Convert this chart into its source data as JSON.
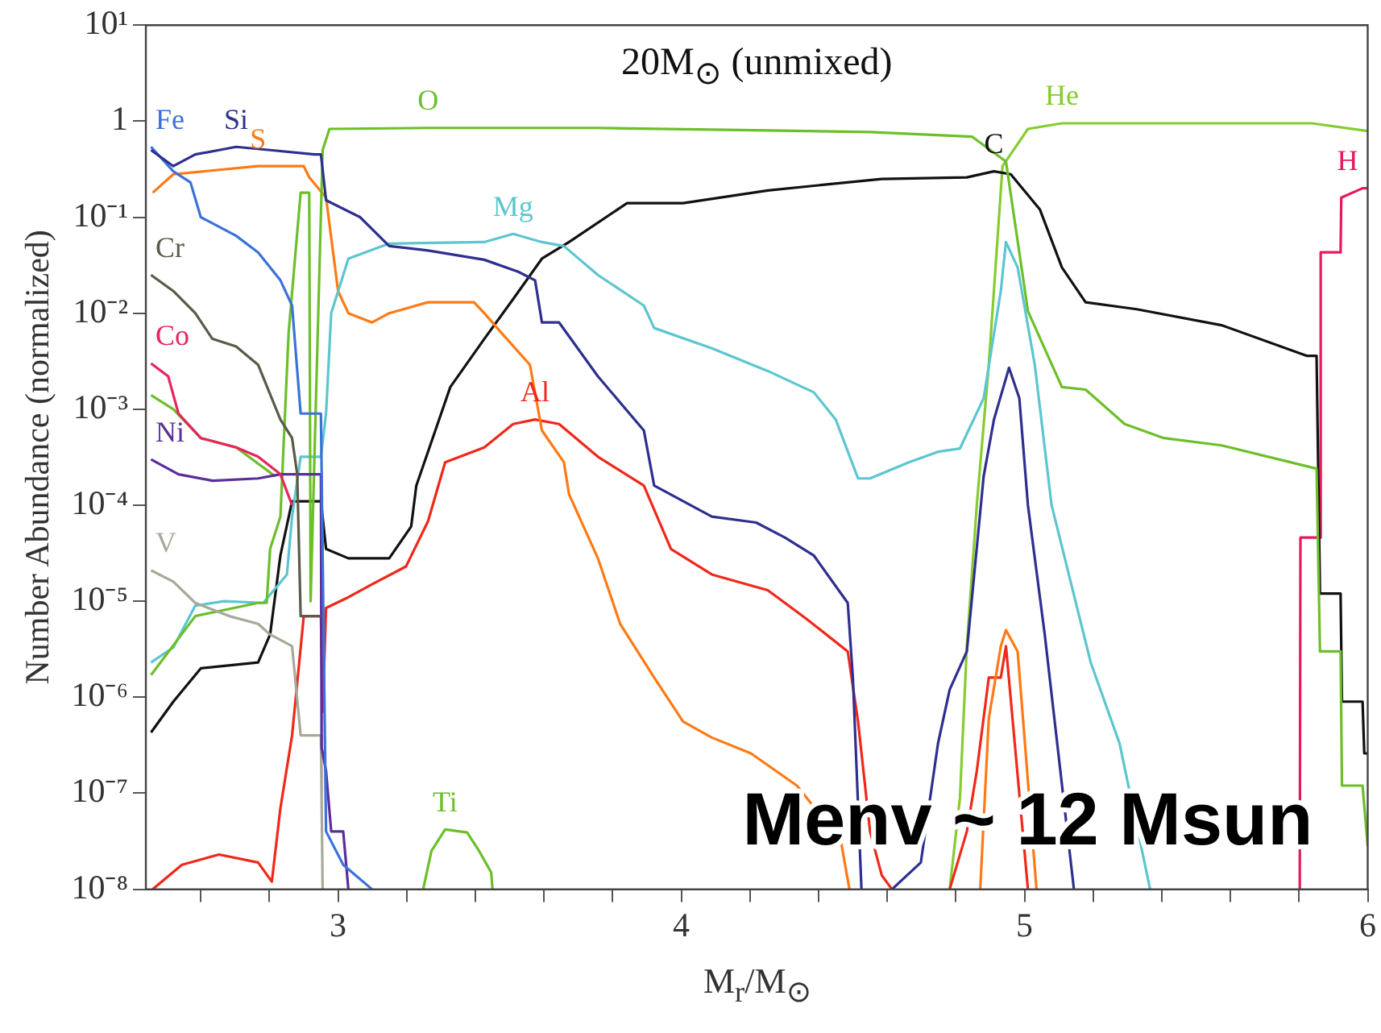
{
  "chart_data": {
    "type": "line",
    "title": "20M$_{⊙}$ (unmixed)",
    "xlabel": "M$_{r}$/M$_{⊙}$",
    "ylabel": "Number Abundance (normalized)",
    "log": "y",
    "grid": false,
    "legend": false,
    "xlim": [
      2.44,
      6
    ],
    "xticks": [
      {
        "value": 2.6,
        "label": null
      },
      {
        "value": 2.8,
        "label": null
      },
      3,
      {
        "value": 3.2,
        "label": null
      },
      {
        "value": 3.4,
        "label": null
      },
      {
        "value": 3.6,
        "label": null
      },
      {
        "value": 3.8,
        "label": null
      },
      4,
      {
        "value": 4.2,
        "label": null
      },
      {
        "value": 4.4,
        "label": null
      },
      {
        "value": 4.6,
        "label": null
      },
      {
        "value": 4.8,
        "label": null
      },
      5,
      {
        "value": 5.2,
        "label": null
      },
      {
        "value": 5.4,
        "label": null
      },
      {
        "value": 5.6,
        "label": null
      },
      {
        "value": 5.8,
        "label": null
      },
      6
    ],
    "ylim": [
      1e-08,
      10
    ],
    "yticks": [
      {
        "value": 1e-08,
        "label": "10⁻⁸"
      },
      {
        "value": 1e-07,
        "label": "10⁻⁷"
      },
      {
        "value": 1e-06,
        "label": "10⁻⁶"
      },
      {
        "value": 1e-05,
        "label": "10⁻⁵"
      },
      {
        "value": 0.0001,
        "label": "10⁻⁴"
      },
      {
        "value": 0.001,
        "label": "10⁻³"
      },
      {
        "value": 0.01,
        "label": "10⁻²"
      },
      {
        "value": 0.1,
        "label": "10⁻¹"
      },
      1,
      {
        "value": 10,
        "label": "10¹"
      }
    ],
    "series": [
      {
        "name": "Si",
        "color": "#2e2f8f",
        "x": [
          2.455,
          2.52,
          2.584,
          2.703,
          2.802,
          2.931,
          2.95,
          2.965,
          3.064,
          3.149,
          3.262,
          3.426,
          3.525,
          3.574,
          3.594,
          3.644,
          3.757,
          3.891,
          3.921,
          4.089,
          4.218,
          4.302,
          4.386,
          4.485,
          4.5,
          4.525,
          4.56,
          4.614,
          4.698,
          4.748,
          4.782,
          4.832,
          4.881,
          4.911,
          4.955,
          4.985,
          5.01,
          5.059,
          5.144
        ],
        "values": [
          0.5,
          0.34,
          0.45,
          0.54,
          0.5,
          0.45,
          0.45,
          0.15,
          0.1,
          0.05,
          0.045,
          0.036,
          0.027,
          0.022,
          0.008,
          0.008,
          0.0022,
          0.0006,
          0.00016,
          7.6e-05,
          6.6e-05,
          4.6e-05,
          3e-05,
          9.6e-06,
          1.6e-06,
          1e-08,
          null,
          1e-08,
          1.9e-08,
          3.3e-07,
          1.2e-06,
          3e-06,
          0.0002,
          0.00078,
          0.0027,
          0.0013,
          0.0001,
          4.5e-06,
          1e-08
        ]
      },
      {
        "name": "Fe",
        "color": "#3b72d9",
        "x": [
          2.455,
          2.52,
          2.57,
          2.6,
          2.703,
          2.767,
          2.832,
          2.866,
          2.891,
          2.95,
          2.965,
          3.015,
          3.099
        ],
        "values": [
          0.54,
          0.3,
          0.23,
          0.1,
          0.064,
          0.043,
          0.022,
          0.012,
          0.0009,
          0.0009,
          4e-08,
          1.8e-08,
          1e-08
        ]
      },
      {
        "name": "Cr",
        "color": "#5a5a48",
        "x": [
          2.455,
          2.52,
          2.584,
          2.634,
          2.703,
          2.767,
          2.832,
          2.866,
          2.881,
          2.891,
          2.95
        ],
        "values": [
          0.025,
          0.017,
          0.01,
          0.0054,
          0.0045,
          0.0029,
          0.00078,
          0.0005,
          0.00021,
          7e-06,
          7e-06
        ]
      },
      {
        "name": "Co",
        "color": "#e8245c",
        "x": [
          2.455,
          2.505,
          2.535,
          2.6,
          2.703,
          2.767,
          2.832,
          2.866
        ],
        "values": [
          0.003,
          0.0022,
          0.0009,
          0.0005,
          0.0004,
          0.00032,
          0.00021,
          0.0001
        ]
      },
      {
        "name": "Ni",
        "color": "#5b2d9b",
        "x": [
          2.455,
          2.535,
          2.634,
          2.767,
          2.832,
          2.95,
          2.952,
          2.965,
          2.98,
          3.015,
          3.03
        ],
        "values": [
          0.0003,
          0.00021,
          0.00018,
          0.00019,
          0.00021,
          0.00021,
          3e-07,
          1.7e-07,
          4e-08,
          4e-08,
          1e-08
        ]
      },
      {
        "name": "V",
        "color": "#a9a999",
        "x": [
          2.455,
          2.52,
          2.584,
          2.683,
          2.767,
          2.802,
          2.866,
          2.891,
          2.95,
          2.952,
          2.955
        ],
        "values": [
          2.1e-05,
          1.6e-05,
          9.6e-06,
          7e-06,
          5.8e-06,
          4.5e-06,
          3.4e-06,
          4e-07,
          4e-07,
          8.6e-08,
          1e-08
        ]
      },
      {
        "name": "O",
        "color": "#6cbf2a",
        "x": [
          2.455,
          2.584,
          2.767,
          2.792,
          2.802,
          2.832,
          2.856,
          2.891,
          2.916,
          2.92,
          2.955,
          2.975,
          3.262,
          3.757,
          4.252,
          4.55,
          4.847,
          4.946,
          5.01,
          5.109,
          5.178,
          5.292,
          5.406,
          5.574,
          5.851,
          5.861,
          5.921,
          5.925,
          5.985,
          6.0
        ],
        "values": [
          1.7e-06,
          7e-06,
          9.6e-06,
          9.6e-06,
          3.5e-05,
          7.6e-05,
          0.0063,
          0.18,
          0.18,
          1e-05,
          0.5,
          0.83,
          0.85,
          0.85,
          0.8,
          0.77,
          0.69,
          0.38,
          0.0105,
          0.0017,
          0.0016,
          0.0007,
          0.0005,
          0.00042,
          0.00024,
          3e-06,
          3e-06,
          1.2e-07,
          1.2e-07,
          2.8e-08
        ]
      },
      {
        "name": "Mg",
        "color": "#5cc6d0",
        "x": [
          2.455,
          2.52,
          2.584,
          2.668,
          2.782,
          2.851,
          2.866,
          2.891,
          2.95,
          2.965,
          2.98,
          3.03,
          3.149,
          3.426,
          3.51,
          3.594,
          3.658,
          3.757,
          3.891,
          3.921,
          4.089,
          4.252,
          4.386,
          4.45,
          4.515,
          4.55,
          4.663,
          4.748,
          4.812,
          4.881,
          4.931,
          4.946,
          4.98,
          5.03,
          5.079,
          5.193,
          5.277,
          5.366
        ],
        "values": [
          2.3e-06,
          3.3e-06,
          9e-06,
          1e-05,
          9.6e-06,
          1.9e-05,
          7.6e-05,
          0.00032,
          0.00032,
          0.0009,
          0.01,
          0.037,
          0.053,
          0.055,
          0.067,
          0.055,
          0.05,
          0.025,
          0.012,
          0.007,
          0.0043,
          0.0025,
          0.0015,
          0.00078,
          0.00019,
          0.00019,
          0.00028,
          0.00036,
          0.00039,
          0.0013,
          0.017,
          0.055,
          0.03,
          0.0029,
          0.0001,
          2.3e-06,
          3.3e-07,
          1e-08
        ]
      },
      {
        "name": "S",
        "color": "#ff7a14",
        "x": [
          2.46,
          2.52,
          2.767,
          2.9,
          2.916,
          2.965,
          3.0,
          3.03,
          3.099,
          3.149,
          3.262,
          3.396,
          3.426,
          3.475,
          3.559,
          3.594,
          3.658,
          3.673,
          3.757,
          3.822,
          3.921,
          4.005,
          4.089,
          4.203,
          4.337,
          4.465,
          4.49,
          4.55,
          4.871,
          4.896,
          4.931,
          4.946,
          4.98,
          5.035
        ],
        "values": [
          0.18,
          0.28,
          0.34,
          0.34,
          0.26,
          0.16,
          0.017,
          0.01,
          0.008,
          0.01,
          0.013,
          0.013,
          0.01,
          0.0063,
          0.0029,
          0.0006,
          0.00028,
          0.00013,
          2.8e-05,
          5.8e-06,
          1.6e-06,
          5.6e-07,
          3.8e-07,
          2.6e-07,
          1.2e-07,
          3.2e-08,
          1e-08,
          null,
          1e-08,
          6e-07,
          3.4e-06,
          5e-06,
          3e-06,
          1e-08
        ]
      },
      {
        "name": "C",
        "color": "#111111",
        "x": [
          2.455,
          2.52,
          2.6,
          2.767,
          2.802,
          2.832,
          2.866,
          2.916,
          2.95,
          2.965,
          3.03,
          3.149,
          3.213,
          3.228,
          3.327,
          3.426,
          3.51,
          3.594,
          3.673,
          3.842,
          4.005,
          4.252,
          4.584,
          4.832,
          4.911,
          4.96,
          5.045,
          5.109,
          5.178,
          5.327,
          5.574,
          5.822,
          5.851,
          5.861,
          5.921,
          5.925,
          5.985,
          5.99,
          6.0
        ],
        "values": [
          4.3e-07,
          9e-07,
          2e-06,
          2.3e-06,
          4.5e-06,
          3e-05,
          0.00011,
          0.00011,
          0.00011,
          3.5e-05,
          2.8e-05,
          2.8e-05,
          6e-05,
          0.00016,
          0.0017,
          0.0054,
          0.014,
          0.037,
          0.055,
          0.14,
          0.14,
          0.19,
          0.25,
          0.26,
          0.3,
          0.28,
          0.12,
          0.03,
          0.013,
          0.011,
          0.0075,
          0.0036,
          0.0036,
          1.2e-05,
          1.2e-05,
          9e-07,
          9e-07,
          2.6e-07,
          2.6e-07
        ]
      },
      {
        "name": "Al",
        "color": "#f0281a",
        "x": [
          2.46,
          2.545,
          2.653,
          2.767,
          2.807,
          2.832,
          2.866,
          2.9,
          2.95,
          2.955,
          2.965,
          3.03,
          3.099,
          3.198,
          3.262,
          3.312,
          3.426,
          3.51,
          3.574,
          3.644,
          3.757,
          3.891,
          3.97,
          4.089,
          4.252,
          4.366,
          4.485,
          4.515,
          4.55,
          4.584,
          4.614,
          4.65,
          4.782,
          4.832,
          4.861,
          4.896,
          4.931,
          4.946,
          5.01
        ],
        "values": [
          1e-08,
          1.8e-08,
          2.3e-08,
          1.9e-08,
          1.2e-08,
          7e-08,
          4e-07,
          7e-06,
          7e-06,
          7e-07,
          8.5e-06,
          1.1e-05,
          1.5e-05,
          2.3e-05,
          6.8e-05,
          0.00028,
          0.0004,
          0.0007,
          0.00078,
          0.0007,
          0.00032,
          0.00016,
          3.5e-05,
          1.9e-05,
          1.3e-05,
          6.5e-06,
          3e-06,
          5.6e-07,
          4e-08,
          1.4e-08,
          1e-08,
          null,
          1e-08,
          4e-08,
          1.7e-07,
          1.6e-06,
          1.6e-06,
          3.4e-06,
          1e-08
        ]
      },
      {
        "color": "#6cbf2a",
        "x": [
          2.455,
          2.52,
          2.6,
          2.703,
          2.817
        ],
        "values": [
          0.0014,
          0.001,
          0.0005,
          0.0004,
          0.0002
        ]
      },
      {
        "name": "Ti",
        "color": "#6cbf2a",
        "x": [
          3.248,
          3.272,
          3.312,
          3.376,
          3.411,
          3.446,
          3.45
        ],
        "values": [
          1e-08,
          2.5e-08,
          4.2e-08,
          3.9e-08,
          2.5e-08,
          1.5e-08,
          1e-08
        ]
      },
      {
        "name": "He",
        "color": "#86cc30",
        "x": [
          4.782,
          4.812,
          4.832,
          4.861,
          4.896,
          4.936,
          5.01,
          5.109,
          5.837,
          6.0
        ],
        "values": [
          1e-08,
          9e-08,
          3.4e-06,
          0.0001,
          0.0029,
          0.34,
          0.83,
          0.95,
          0.95,
          0.79
        ]
      },
      {
        "name": "H",
        "color": "#e8185e",
        "x": [
          5.802,
          5.804,
          5.861,
          5.863,
          5.921,
          5.923,
          5.985,
          6.0
        ],
        "values": [
          1e-08,
          4.6e-05,
          4.6e-05,
          0.043,
          0.043,
          0.16,
          0.2,
          0.2
        ]
      }
    ],
    "annotations": [
      "Menv ~ 12 Msun"
    ]
  }
}
